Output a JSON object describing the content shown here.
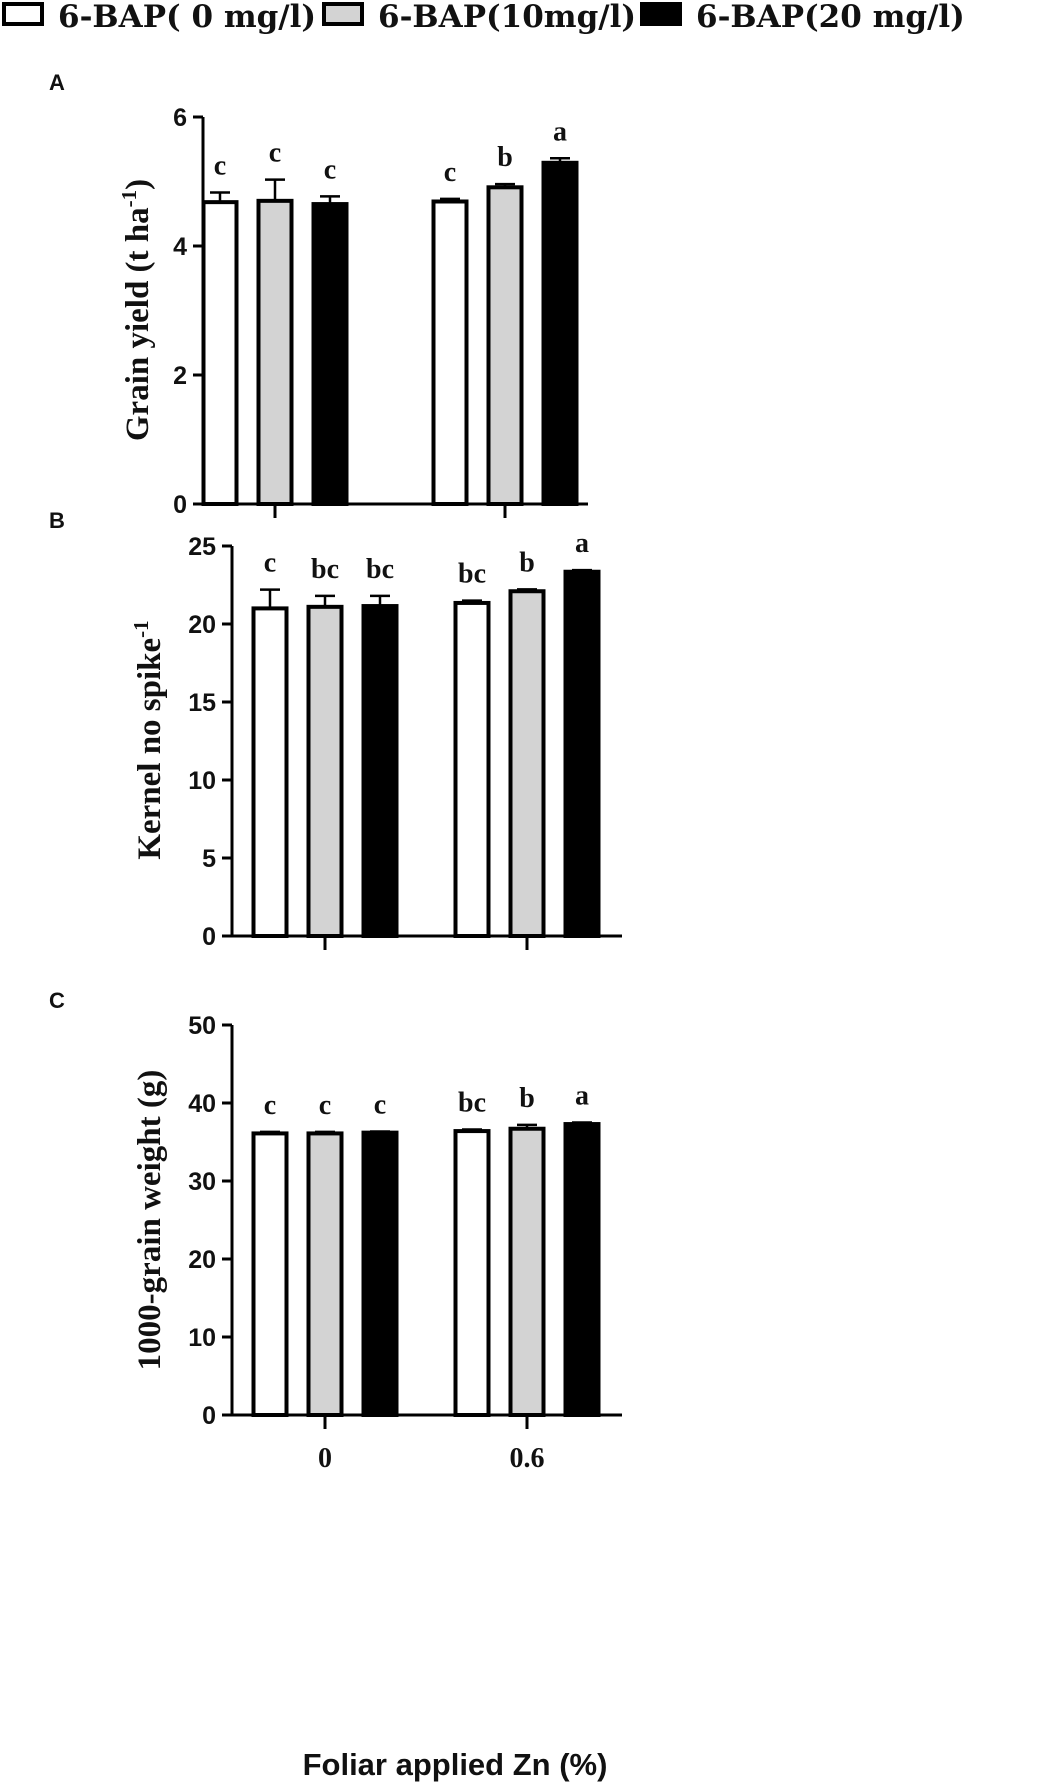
{
  "legend": {
    "items": [
      {
        "label": "6-BAP( 0 mg/l)",
        "color": "#ffffff"
      },
      {
        "label": "6-BAP(10mg/l)",
        "color": "#d3d3d3"
      },
      {
        "label": "6-BAP(20 mg/l)",
        "color": "#000000"
      }
    ]
  },
  "x_axis_title": "Foliar applied Zn (%)",
  "chart_data": [
    {
      "type": "bar",
      "panel": "A",
      "title": "",
      "categories": [
        "0",
        "0.6"
      ],
      "xlabel": "Foliar applied Zn (%)",
      "ylabel": "Grain yield (t ha",
      "ylabel_sup": "-1",
      "ylabel_end": ")",
      "ylim": [
        0,
        6
      ],
      "yticks": [
        0,
        2,
        4,
        6
      ],
      "grid": false,
      "legend_position": "top",
      "series": [
        {
          "name": "6-BAP( 0 mg/l)",
          "values": [
            4.68,
            4.69
          ],
          "errors": [
            0.15,
            0.04
          ],
          "letters": [
            "c",
            "c"
          ]
        },
        {
          "name": "6-BAP(10mg/l)",
          "values": [
            4.7,
            4.91
          ],
          "errors": [
            0.33,
            0.05
          ],
          "letters": [
            "c",
            "b"
          ]
        },
        {
          "name": "6-BAP(20 mg/l)",
          "values": [
            4.65,
            5.29
          ],
          "errors": [
            0.12,
            0.07
          ],
          "letters": [
            "c",
            "a"
          ]
        }
      ]
    },
    {
      "type": "bar",
      "panel": "B",
      "title": "",
      "categories": [
        "0",
        "0.6"
      ],
      "xlabel": "Foliar applied Zn (%)",
      "ylabel": "Kernel no spike",
      "ylabel_sup": "-1",
      "ylabel_end": "",
      "ylim": [
        0,
        25
      ],
      "yticks": [
        0,
        5,
        10,
        15,
        20,
        25
      ],
      "grid": false,
      "legend_position": "top",
      "series": [
        {
          "name": "6-BAP( 0 mg/l)",
          "values": [
            21.0,
            21.35
          ],
          "errors": [
            1.2,
            0.15
          ],
          "letters": [
            "c",
            "bc"
          ]
        },
        {
          "name": "6-BAP(10mg/l)",
          "values": [
            21.1,
            22.1
          ],
          "errors": [
            0.7,
            0.12
          ],
          "letters": [
            "bc",
            "b"
          ]
        },
        {
          "name": "6-BAP(20 mg/l)",
          "values": [
            21.15,
            23.35
          ],
          "errors": [
            0.65,
            0.1
          ],
          "letters": [
            "bc",
            "a"
          ]
        }
      ]
    },
    {
      "type": "bar",
      "panel": "C",
      "title": "",
      "categories": [
        "0",
        "0.6"
      ],
      "xlabel": "Foliar applied Zn (%)",
      "ylabel": "1000-grain weight (g)",
      "ylabel_sup": "",
      "ylabel_end": "",
      "ylim": [
        0,
        50
      ],
      "yticks": [
        0,
        10,
        20,
        30,
        40,
        50
      ],
      "grid": false,
      "legend_position": "top",
      "series": [
        {
          "name": "6-BAP( 0 mg/l)",
          "values": [
            36.1,
            36.4
          ],
          "errors": [
            0.2,
            0.2
          ],
          "letters": [
            "c",
            "bc"
          ]
        },
        {
          "name": "6-BAP(10mg/l)",
          "values": [
            36.1,
            36.7
          ],
          "errors": [
            0.2,
            0.5
          ],
          "letters": [
            "c",
            "b"
          ]
        },
        {
          "name": "6-BAP(20 mg/l)",
          "values": [
            36.2,
            37.3
          ],
          "errors": [
            0.15,
            0.2
          ],
          "letters": [
            "c",
            "a"
          ]
        }
      ]
    }
  ]
}
